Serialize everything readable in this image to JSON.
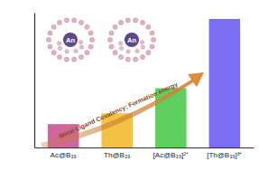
{
  "chart_data": {
    "type": "bar",
    "categories": [
      "Ac@B₃₉",
      "Th@B₃₉",
      "[Ac@B₃₉]²⁺",
      "[Th@B₃₉]³⁺"
    ],
    "values": [
      26,
      38,
      66,
      143
    ],
    "colors": [
      "#d0679c",
      "#f3c244",
      "#5fd05f",
      "#7b6ef2"
    ],
    "ylim": [
      0,
      150
    ],
    "yticks": [],
    "tick_labels": "x",
    "grid": false,
    "annotations": [
      "Metal-Ligand Covalency; Formation energy",
      "An",
      "An"
    ]
  }
}
